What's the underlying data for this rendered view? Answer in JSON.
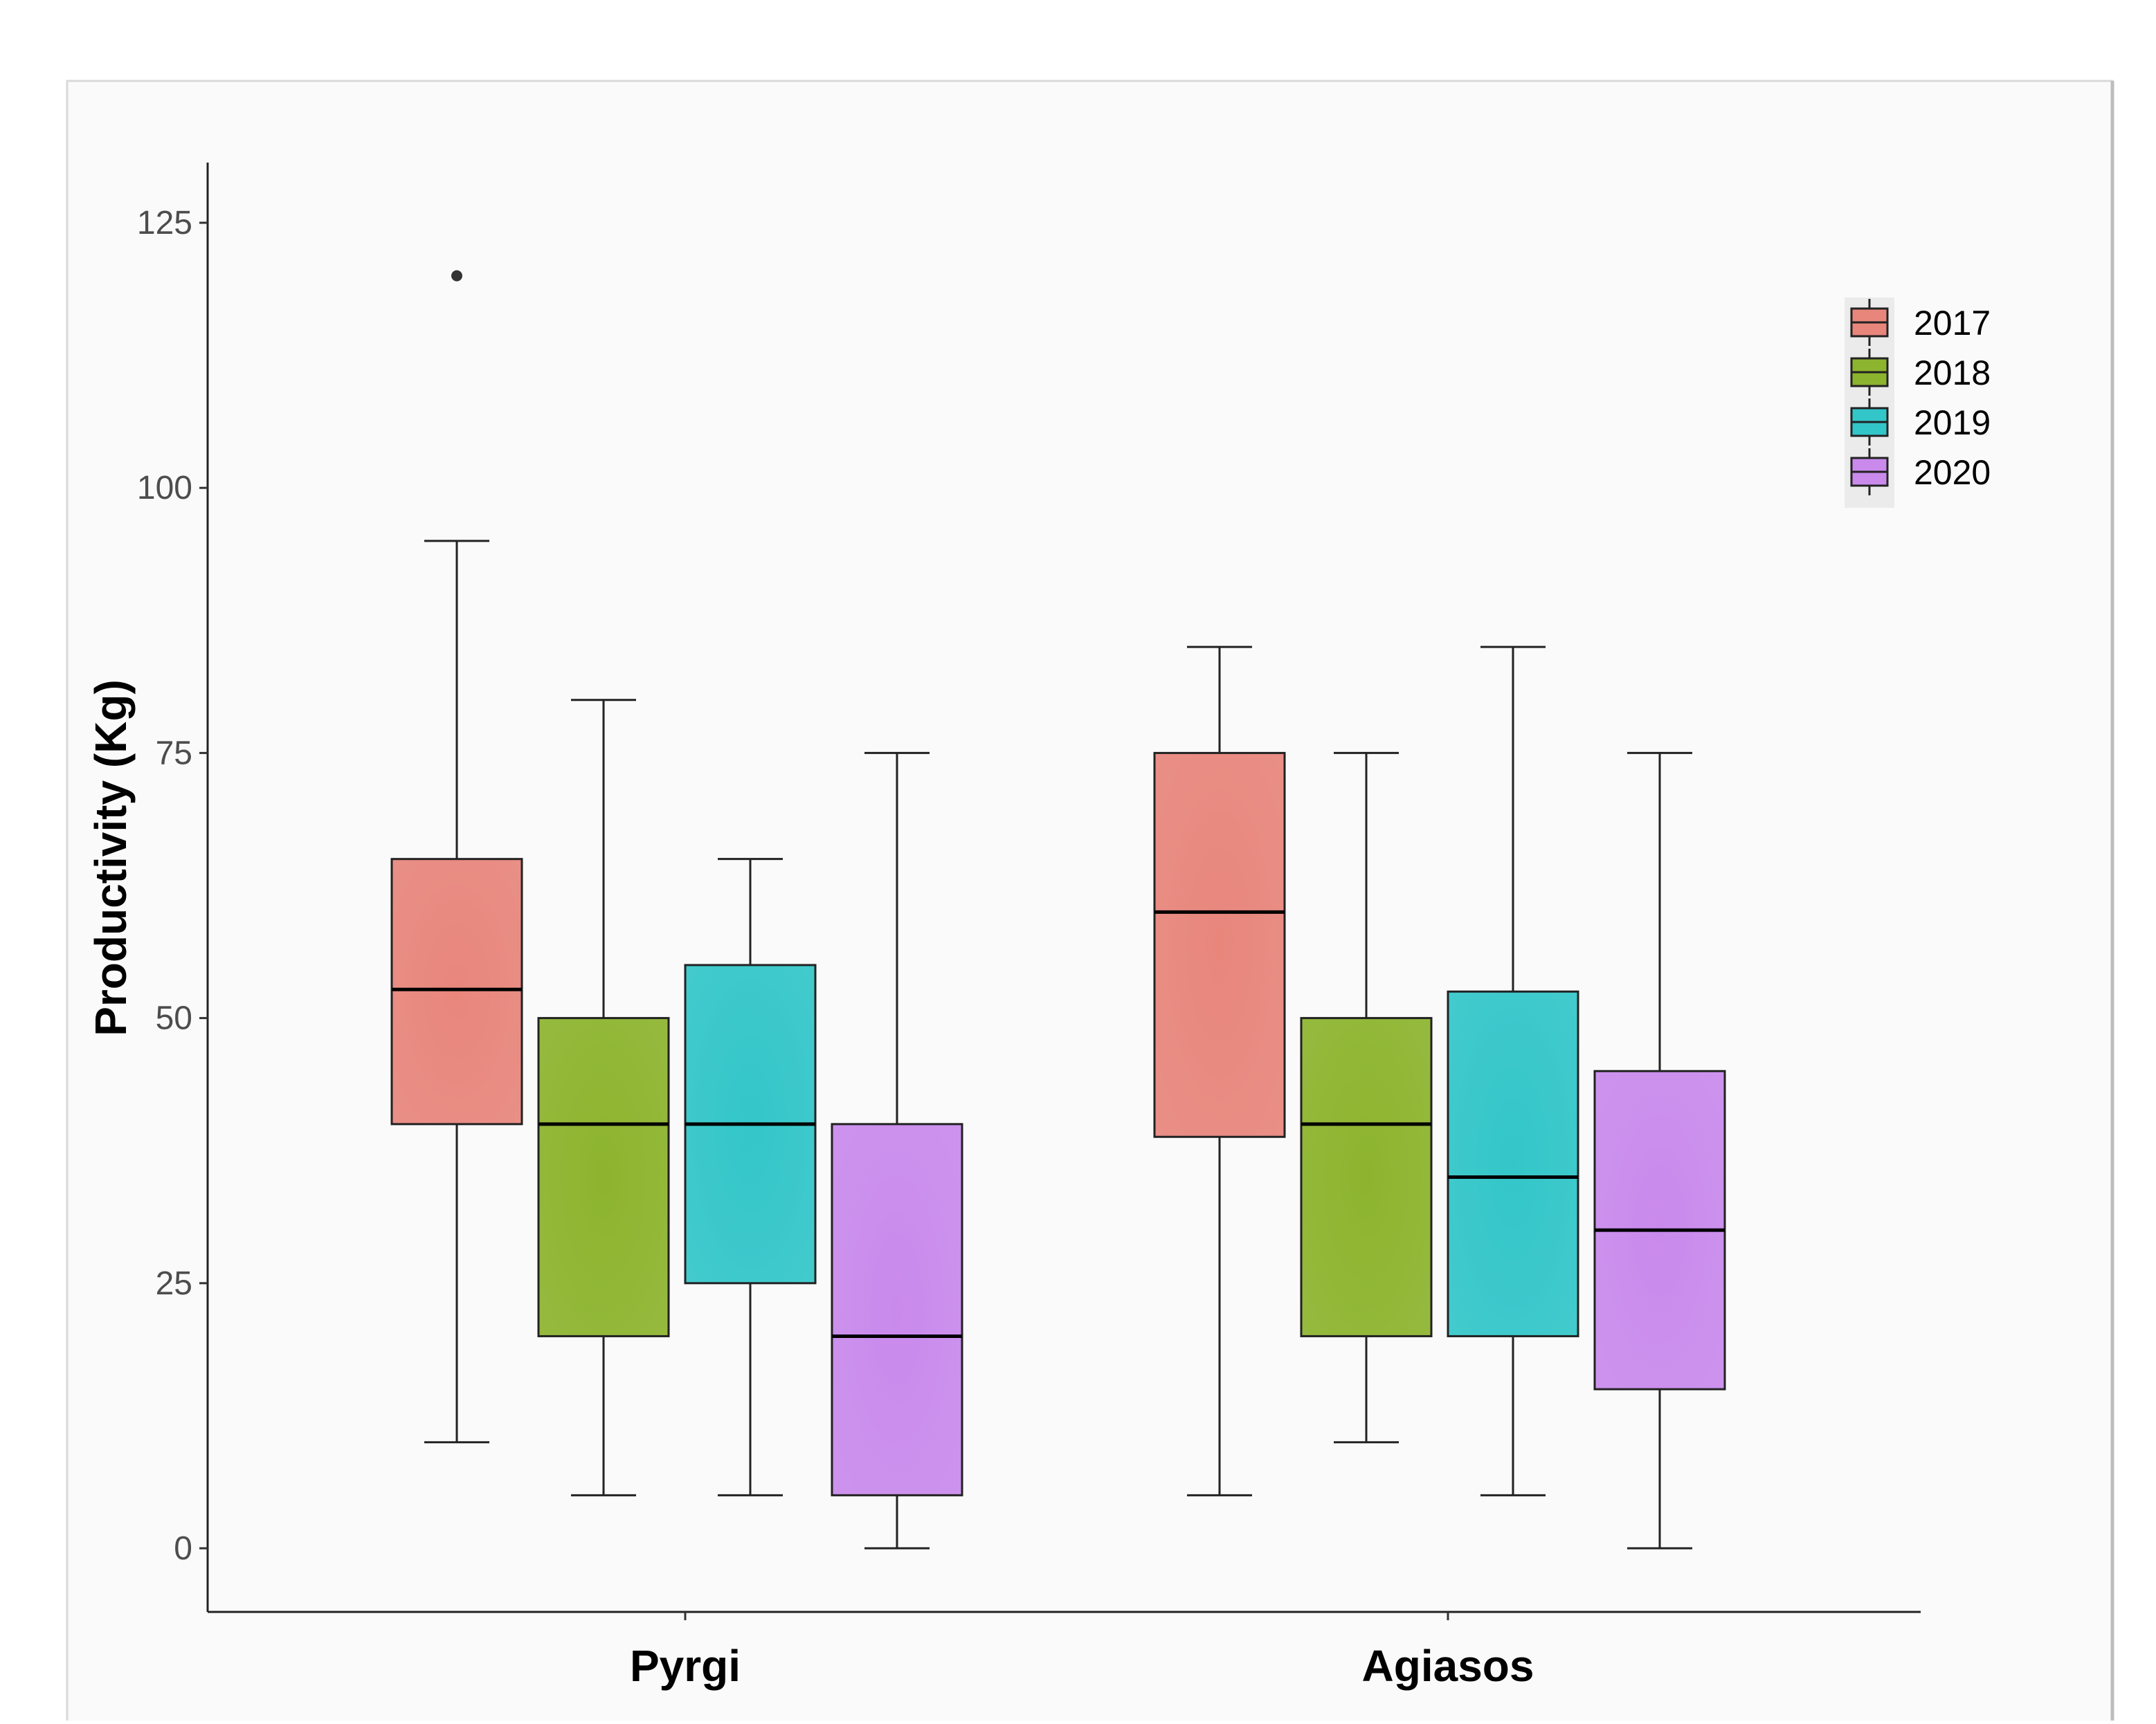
{
  "chart_data": {
    "type": "boxplot",
    "title": "",
    "xlabel": "",
    "ylabel": "Productivity (Kg)",
    "ylim": [
      -6,
      131
    ],
    "yticks": [
      0,
      25,
      50,
      75,
      100,
      125
    ],
    "ytick_labels": [
      "0",
      "25",
      "50",
      "75",
      "100",
      "125"
    ],
    "grid": false,
    "legend_position": "top-right",
    "categories": [
      "Pyrgi",
      "Agiasos"
    ],
    "series": [
      {
        "name": "2017",
        "color": "#e8867c",
        "boxes": [
          {
            "category": "Pyrgi",
            "min": 10,
            "q1": 40,
            "median": 52.7,
            "q3": 65,
            "max": 95,
            "outliers": [
              120
            ]
          },
          {
            "category": "Agiasos",
            "min": 5,
            "q1": 38.8,
            "median": 60,
            "q3": 75,
            "max": 85,
            "outliers": []
          }
        ]
      },
      {
        "name": "2018",
        "color": "#8db42e",
        "boxes": [
          {
            "category": "Pyrgi",
            "min": 5,
            "q1": 20,
            "median": 40,
            "q3": 50,
            "max": 80,
            "outliers": []
          },
          {
            "category": "Agiasos",
            "min": 10,
            "q1": 20,
            "median": 40,
            "q3": 50,
            "max": 75,
            "outliers": []
          }
        ]
      },
      {
        "name": "2019",
        "color": "#33c6c9",
        "boxes": [
          {
            "category": "Pyrgi",
            "min": 5,
            "q1": 25,
            "median": 40,
            "q3": 55,
            "max": 65,
            "outliers": []
          },
          {
            "category": "Agiasos",
            "min": 5,
            "q1": 20,
            "median": 35,
            "q3": 52.5,
            "max": 85,
            "outliers": []
          }
        ]
      },
      {
        "name": "2020",
        "color": "#c98aec",
        "boxes": [
          {
            "category": "Pyrgi",
            "min": 0,
            "q1": 5,
            "median": 20,
            "q3": 40,
            "max": 75,
            "outliers": []
          },
          {
            "category": "Agiasos",
            "min": 0,
            "q1": 15,
            "median": 30,
            "q3": 45,
            "max": 75,
            "outliers": []
          }
        ]
      }
    ]
  }
}
